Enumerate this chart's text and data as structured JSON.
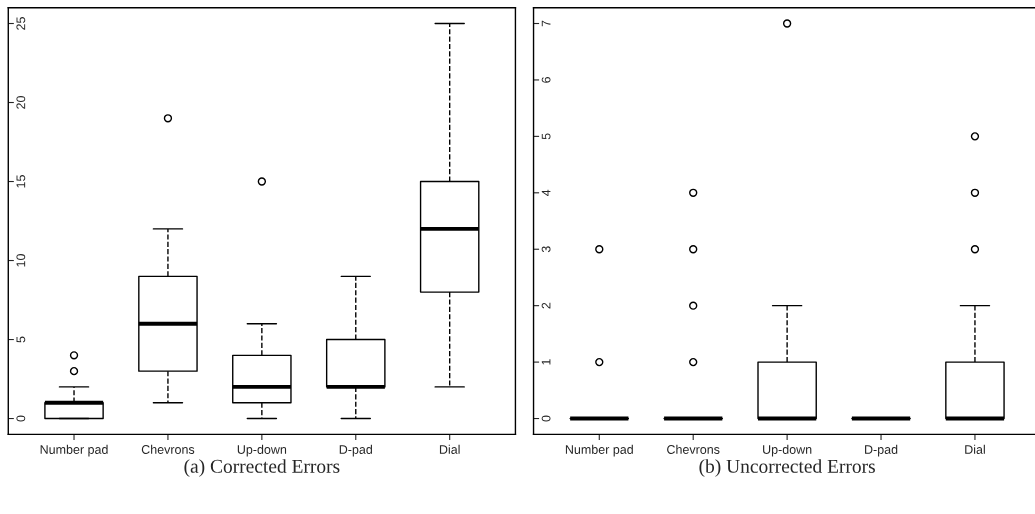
{
  "chart_data": [
    {
      "type": "box",
      "xlabel": "(a) Corrected Errors",
      "categories": [
        "Number pad",
        "Chevrons",
        "Up-down",
        "D-pad",
        "Dial"
      ],
      "boxes": [
        {
          "low": 0,
          "q1": 0,
          "median": 1,
          "q3": 1,
          "high": 2,
          "outliers": [
            3,
            4
          ]
        },
        {
          "low": 1,
          "q1": 3,
          "median": 6,
          "q3": 9,
          "high": 12,
          "outliers": [
            19
          ]
        },
        {
          "low": 0,
          "q1": 1,
          "median": 2,
          "q3": 4,
          "high": 6,
          "outliers": [
            15
          ]
        },
        {
          "low": 0,
          "q1": 2,
          "median": 2,
          "q3": 5,
          "high": 9
        },
        {
          "low": 2,
          "q1": 8,
          "median": 12,
          "q3": 15,
          "high": 25
        }
      ],
      "ylim": [
        -1,
        26
      ],
      "yticks": [
        0,
        5,
        10,
        15,
        20,
        25
      ],
      "line_style": "dashed",
      "grid": false
    },
    {
      "type": "box",
      "xlabel": "(b) Uncorrected Errors",
      "categories": [
        "Number pad",
        "Chevrons",
        "Up-down",
        "D-pad",
        "Dial"
      ],
      "boxes": [
        {
          "low": 0,
          "q1": 0,
          "median": 0,
          "q3": 0,
          "high": 0,
          "outliers": [
            1,
            3
          ]
        },
        {
          "low": 0,
          "q1": 0,
          "median": 0,
          "q3": 0,
          "high": 0,
          "outliers": [
            1,
            2,
            3,
            4
          ]
        },
        {
          "low": 0,
          "q1": 0,
          "median": 0,
          "q3": 1,
          "high": 2,
          "outliers": [
            7
          ]
        },
        {
          "low": 0,
          "q1": 0,
          "median": 0,
          "q3": 0,
          "high": 0
        },
        {
          "low": 0,
          "q1": 0,
          "median": 0,
          "q3": 1,
          "high": 2,
          "outliers": [
            3,
            4,
            5
          ]
        }
      ],
      "ylim": [
        -0.28,
        7.28
      ],
      "yticks": [
        0,
        1,
        2,
        3,
        4,
        5,
        6,
        7
      ],
      "line_style": "dashed",
      "grid": false
    }
  ]
}
